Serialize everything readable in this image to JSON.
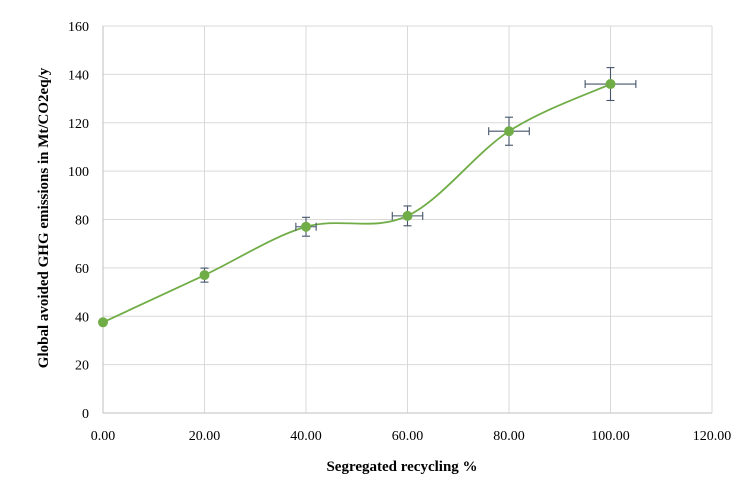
{
  "chart_data": {
    "type": "scatter",
    "title": "",
    "xlabel": "Segregated recycling %",
    "ylabel": "Global avoided GHG emissions in Mt/CO2eq/y",
    "xlim": [
      0,
      120
    ],
    "ylim": [
      0,
      160
    ],
    "x_ticks": [
      "0.00",
      "20.00",
      "40.00",
      "60.00",
      "80.00",
      "100.00",
      "120.00"
    ],
    "y_ticks": [
      "0",
      "20",
      "40",
      "60",
      "80",
      "100",
      "120",
      "140",
      "160"
    ],
    "grid": true,
    "legend": "none",
    "smooth_line": true,
    "colors": {
      "series": "#70ad47",
      "marker": "#70ad47",
      "error_bars": "#44546a",
      "grid": "#d9d9d9",
      "axis": "#bfbfbf"
    },
    "series": [
      {
        "x": [
          0,
          20,
          40,
          60,
          80,
          100
        ],
        "y": [
          37.5,
          57,
          77,
          81.5,
          116.5,
          136
        ],
        "y_error": [
          0,
          2.9,
          3.9,
          4.1,
          5.8,
          6.8
        ],
        "x_error": [
          0,
          0,
          2,
          3,
          4,
          5
        ]
      }
    ]
  }
}
